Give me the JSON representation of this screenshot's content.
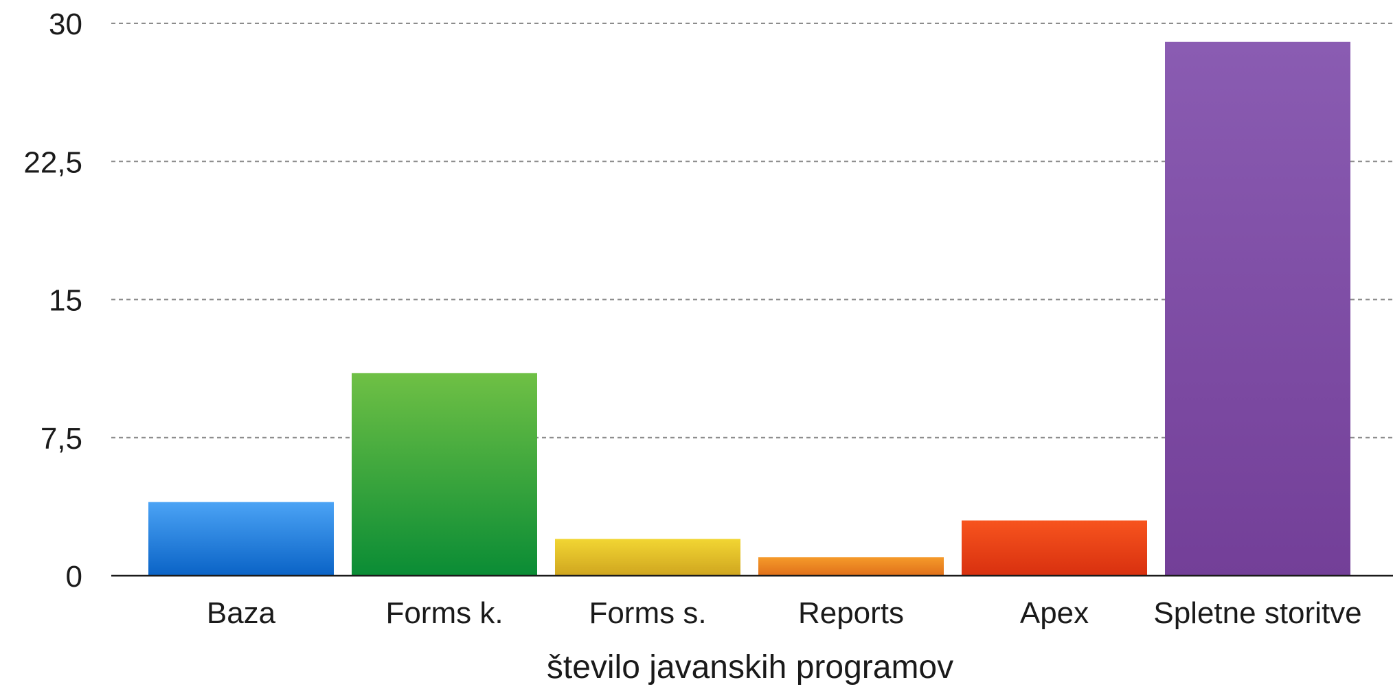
{
  "chart_data": {
    "type": "bar",
    "categories": [
      "Baza",
      "Forms k.",
      "Forms s.",
      "Reports",
      "Apex",
      "Spletne storitve"
    ],
    "values": [
      4,
      11,
      2,
      1,
      3,
      29
    ],
    "colors": [
      [
        "#4ba3f5",
        "#0a63c6"
      ],
      [
        "#6fc045",
        "#0a8c35"
      ],
      [
        "#f2d633",
        "#cfa51f"
      ],
      [
        "#f59a2a",
        "#e0701a"
      ],
      [
        "#f7541e",
        "#d8300f"
      ],
      [
        "#8a5cb2",
        "#733f98"
      ]
    ],
    "xlabel": "število javanskih programov",
    "ylabel": "",
    "title": "",
    "ylim": [
      0,
      30
    ],
    "yticks": [
      0,
      7.5,
      15,
      22.5,
      30
    ],
    "ytick_labels": [
      "0",
      "7,5",
      "15",
      "22,5",
      "30"
    ],
    "grid": true,
    "legend": "none"
  }
}
